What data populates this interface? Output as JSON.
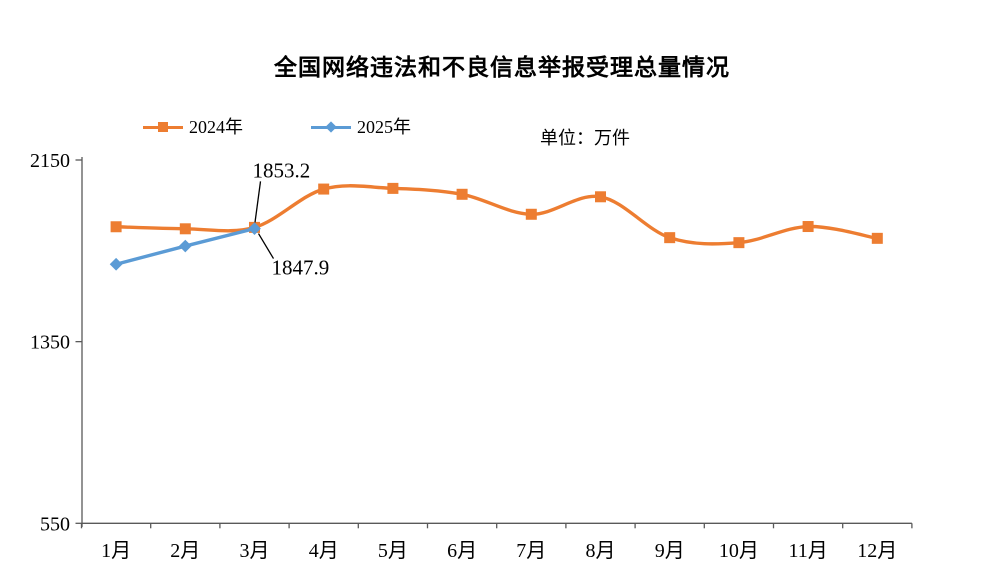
{
  "title": "全国网络违法和不良信息举报受理总量情况",
  "unit_label": "单位：万件",
  "legend": [
    {
      "label": "2024年",
      "color": "#ED7D31",
      "marker": "square"
    },
    {
      "label": "2025年",
      "color": "#5B9BD5",
      "marker": "diamond"
    }
  ],
  "chart_data": {
    "type": "line",
    "title": "全国网络违法和不良信息举报受理总量情况",
    "unit": "万件",
    "categories": [
      "1月",
      "2月",
      "3月",
      "4月",
      "5月",
      "6月",
      "7月",
      "8月",
      "9月",
      "10月",
      "11月",
      "12月"
    ],
    "series": [
      {
        "name": "2024年",
        "color": "#ED7D31",
        "marker": "square",
        "smooth": true,
        "values": [
          1856,
          1847,
          1853.2,
          2022,
          2025,
          1999,
          1911,
          1988,
          1808,
          1786,
          1857,
          1805
        ]
      },
      {
        "name": "2025年",
        "color": "#5B9BD5",
        "marker": "diamond",
        "smooth": false,
        "values": [
          1691,
          1771,
          1847.9
        ]
      }
    ],
    "annotations": [
      {
        "text": "1853.2",
        "series": "2024年",
        "category": "3月",
        "value": 1853.2,
        "placement": "above"
      },
      {
        "text": "1847.9",
        "series": "2025年",
        "category": "3月",
        "value": 1847.9,
        "placement": "below"
      }
    ],
    "ylim": [
      550,
      2150
    ],
    "yticks": [
      550,
      1350,
      2150
    ],
    "grid": false,
    "legend_position": "top-left",
    "axis_color": "#595959",
    "text_color": "#000000"
  }
}
